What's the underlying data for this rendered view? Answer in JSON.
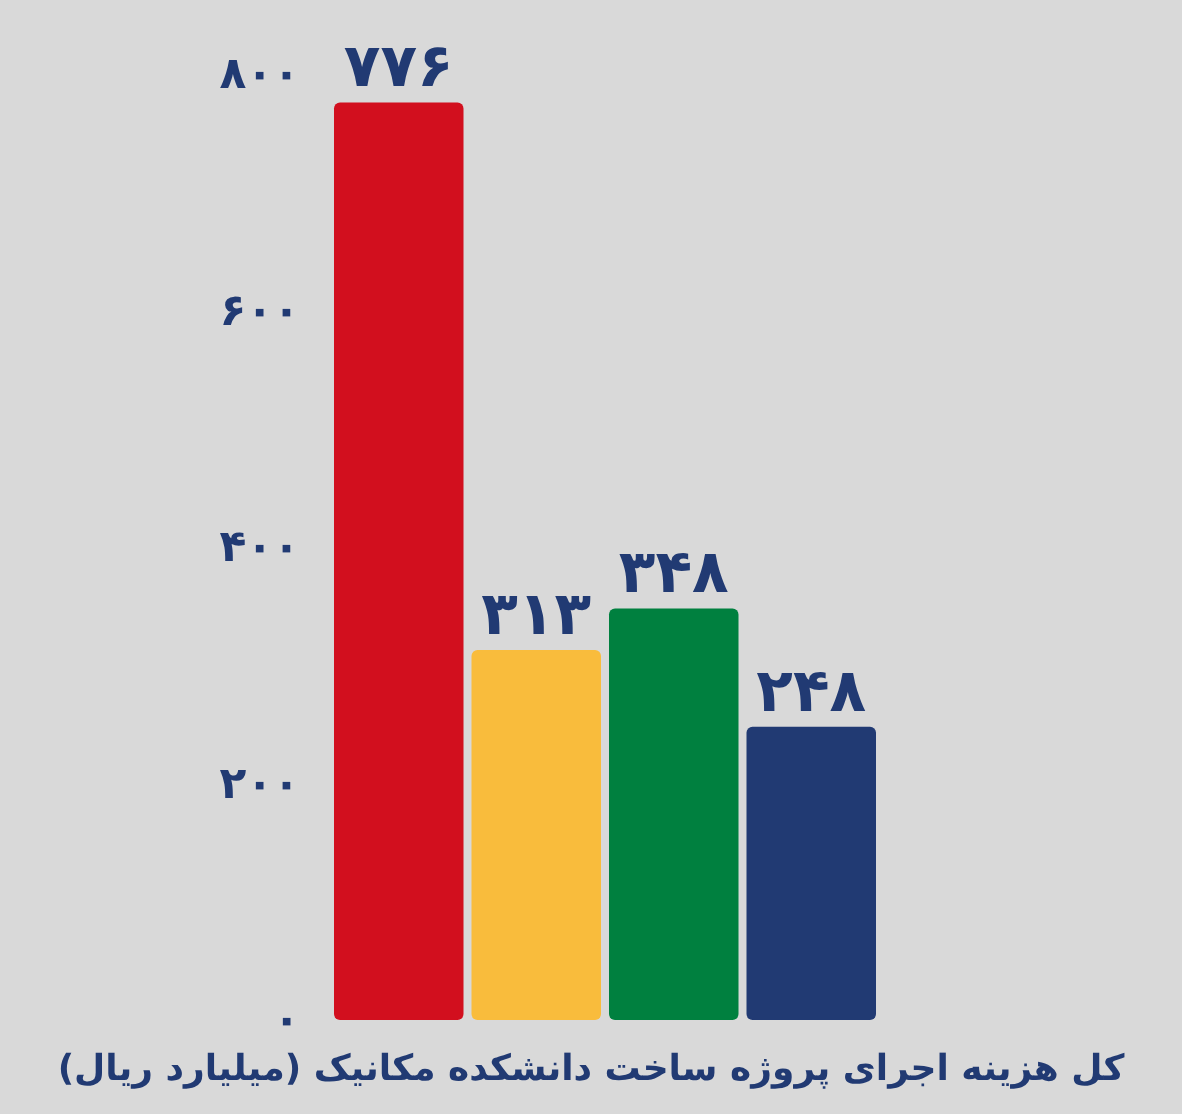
{
  "chart_data": {
    "type": "bar",
    "xlabel": "کل هزینه اجرای پروژه ساخت دانشکده مکانیک (میلیارد ریال)",
    "categories": [
      null,
      null,
      null,
      null
    ],
    "values": [
      776,
      313,
      348,
      248
    ],
    "colors": [
      "#d20f1e",
      "#f9bc3c",
      "#00803f",
      "#213a73"
    ],
    "value_labels": [
      "۷۷۶",
      "۳۱۳",
      "۳۴۸",
      "۲۴۸"
    ],
    "ylim": [
      0,
      800
    ],
    "yticks": [
      {
        "value": 0,
        "label": "۰"
      },
      {
        "value": 200,
        "label": "۲۰۰"
      },
      {
        "value": 400,
        "label": "۴۰۰"
      },
      {
        "value": 600,
        "label": "۶۰۰"
      },
      {
        "value": 800,
        "label": "۸۰۰"
      }
    ],
    "grid": false
  }
}
